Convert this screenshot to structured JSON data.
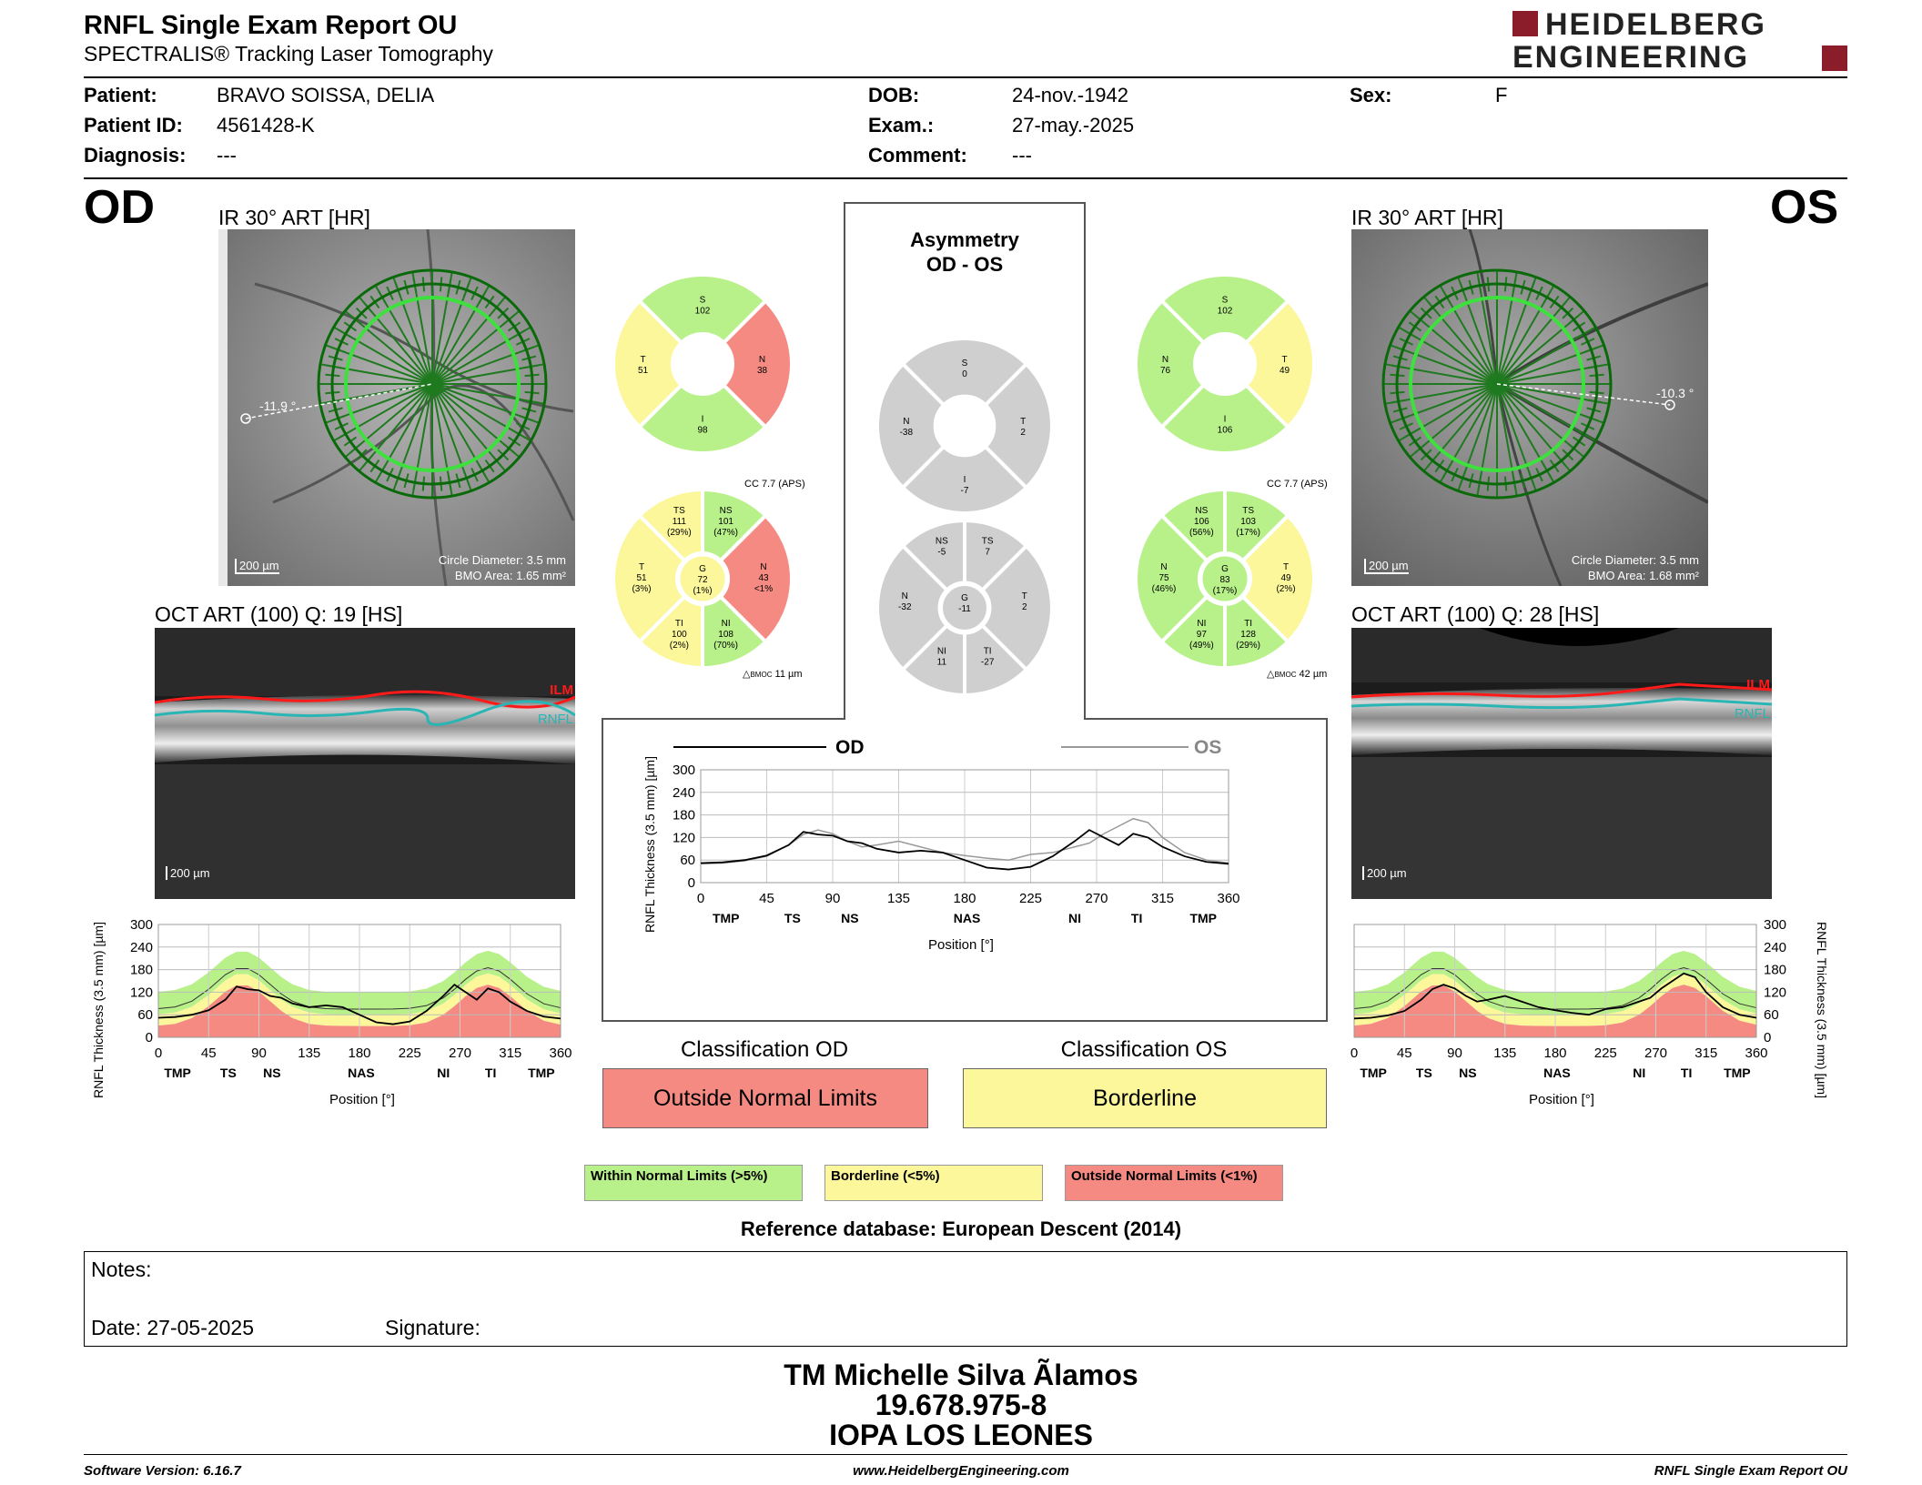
{
  "header": {
    "title": "RNFL Single Exam Report OU",
    "subtitle": "SPECTRALIS® Tracking Laser Tomography",
    "logo_line1": "HEIDELBERG",
    "logo_line2": "ENGINEERING"
  },
  "patient": {
    "patient_label": "Patient:",
    "patient_value": "BRAVO SOISSA, DELIA",
    "id_label": "Patient ID:",
    "id_value": "4561428-K",
    "diag_label": "Diagnosis:",
    "diag_value": "---",
    "dob_label": "DOB:",
    "dob_value": "24-nov.-1942",
    "exam_label": "Exam.:",
    "exam_value": "27-may.-2025",
    "comment_label": "Comment:",
    "comment_value": "---",
    "sex_label": "Sex:",
    "sex_value": "F"
  },
  "od": {
    "eye": "OD",
    "ir_title": "IR 30° ART [HR]",
    "angle": "-11.9 °",
    "scale": "200 µm",
    "circle_diam": "Circle Diameter: 3.5 mm",
    "bmo_area": "BMO Area: 1.65 mm²",
    "oct_title": "OCT ART (100) Q: 19 [HS]",
    "ilm": "ILM",
    "rnfl": "RNFL",
    "oct_scale": "200 µm",
    "classification_title": "Classification OD",
    "classification": "Outside Normal Limits",
    "cc": "CC 7.7 (APS)",
    "bmoc": "11 µm",
    "quadrants": {
      "S": "102",
      "T": "51",
      "N": "38",
      "I": "98"
    },
    "sectors": {
      "TS": {
        "v": "111",
        "p": "(29%)"
      },
      "NS": {
        "v": "101",
        "p": "(47%)"
      },
      "T": {
        "v": "51",
        "p": "(3%)"
      },
      "G": {
        "v": "72",
        "p": "(1%)"
      },
      "N": {
        "v": "43",
        "p": "<1%"
      },
      "TI": {
        "v": "100",
        "p": "(2%)"
      },
      "NI": {
        "v": "108",
        "p": "(70%)"
      }
    }
  },
  "os": {
    "eye": "OS",
    "ir_title": "IR 30° ART [HR]",
    "angle": "-10.3 °",
    "scale": "200 µm",
    "circle_diam": "Circle Diameter: 3.5 mm",
    "bmo_area": "BMO Area: 1.68 mm²",
    "oct_title": "OCT ART (100) Q: 28 [HS]",
    "ilm": "ILM",
    "rnfl": "RNFL",
    "oct_scale": "200 µm",
    "classification_title": "Classification OS",
    "classification": "Borderline",
    "cc": "CC 7.7 (APS)",
    "bmoc": "42 µm",
    "quadrants": {
      "S": "102",
      "N": "76",
      "T": "49",
      "I": "106"
    },
    "sectors": {
      "NS": {
        "v": "106",
        "p": "(56%)"
      },
      "TS": {
        "v": "103",
        "p": "(17%)"
      },
      "N": {
        "v": "75",
        "p": "(46%)"
      },
      "G": {
        "v": "83",
        "p": "(17%)"
      },
      "T": {
        "v": "49",
        "p": "(2%)"
      },
      "NI": {
        "v": "97",
        "p": "(49%)"
      },
      "TI": {
        "v": "128",
        "p": "(29%)"
      }
    }
  },
  "asym": {
    "title1": "Asymmetry",
    "title2": "OD - OS",
    "quadrants": {
      "S": "0",
      "N": "-38",
      "T": "2",
      "I": "-7"
    },
    "sectors": {
      "NS": "-5",
      "TS": "7",
      "N": "-32",
      "G": "-11",
      "T": "2",
      "NI": "11",
      "TI": "-27"
    }
  },
  "chart_labels": {
    "ylabel": "RNFL Thickness (3.5 mm) [µm]",
    "xlabel": "Position [°]",
    "od_legend": "OD",
    "os_legend": "OS",
    "yticks": [
      "0",
      "60",
      "120",
      "180",
      "240",
      "300"
    ],
    "xticks": [
      "0",
      "45",
      "90",
      "135",
      "180",
      "225",
      "270",
      "315",
      "360"
    ],
    "sectors": [
      "TMP",
      "TS",
      "NS",
      "NAS",
      "NI",
      "TI",
      "TMP"
    ]
  },
  "chart_data": [
    {
      "type": "line",
      "name": "OD RNFL profile",
      "x": [
        0,
        15,
        30,
        45,
        60,
        70,
        80,
        90,
        100,
        110,
        120,
        135,
        150,
        165,
        180,
        195,
        210,
        225,
        240,
        255,
        265,
        275,
        285,
        295,
        305,
        315,
        330,
        345,
        360
      ],
      "series": [
        {
          "name": "OD",
          "values": [
            52,
            54,
            60,
            72,
            100,
            135,
            128,
            125,
            110,
            105,
            90,
            80,
            85,
            80,
            60,
            40,
            35,
            42,
            70,
            110,
            140,
            120,
            100,
            130,
            120,
            95,
            70,
            55,
            50
          ]
        }
      ],
      "ylim": [
        0,
        300
      ],
      "xlim": [
        0,
        360
      ]
    },
    {
      "type": "line",
      "name": "OS RNFL profile",
      "x": [
        0,
        15,
        30,
        45,
        60,
        70,
        80,
        90,
        100,
        110,
        120,
        135,
        150,
        165,
        180,
        195,
        210,
        225,
        240,
        255,
        265,
        275,
        285,
        295,
        305,
        315,
        330,
        345,
        360
      ],
      "series": [
        {
          "name": "OS",
          "values": [
            50,
            52,
            58,
            70,
            100,
            128,
            140,
            130,
            110,
            95,
            100,
            110,
            95,
            80,
            72,
            65,
            60,
            75,
            80,
            95,
            105,
            130,
            150,
            170,
            160,
            120,
            80,
            60,
            52
          ]
        }
      ],
      "ylim": [
        0,
        300
      ],
      "xlim": [
        0,
        360
      ]
    }
  ],
  "legend": {
    "wnl": "Within Normal Limits (>5%)",
    "bl": "Borderline (<5%)",
    "onl": "Outside Normal Limits (<1%)",
    "refdb": "Reference database: European Descent (2014)"
  },
  "notes": {
    "notes_label": "Notes:",
    "date_label": "Date: 27-05-2025",
    "sig_label": "Signature:"
  },
  "signature_block": {
    "name": "TM Michelle Silva Ãlamos",
    "id": "19.678.975-8",
    "clinic": "IOPA LOS LEONES"
  },
  "footer": {
    "software": "Software Version: 6.16.7",
    "web": "www.HeidelbergEngineering.com",
    "report": "RNFL Single Exam Report OU"
  },
  "colors": {
    "green": "#b8f08a",
    "yellow": "#fbf79a",
    "red": "#f58a82",
    "grey": "#cfcfcf"
  }
}
